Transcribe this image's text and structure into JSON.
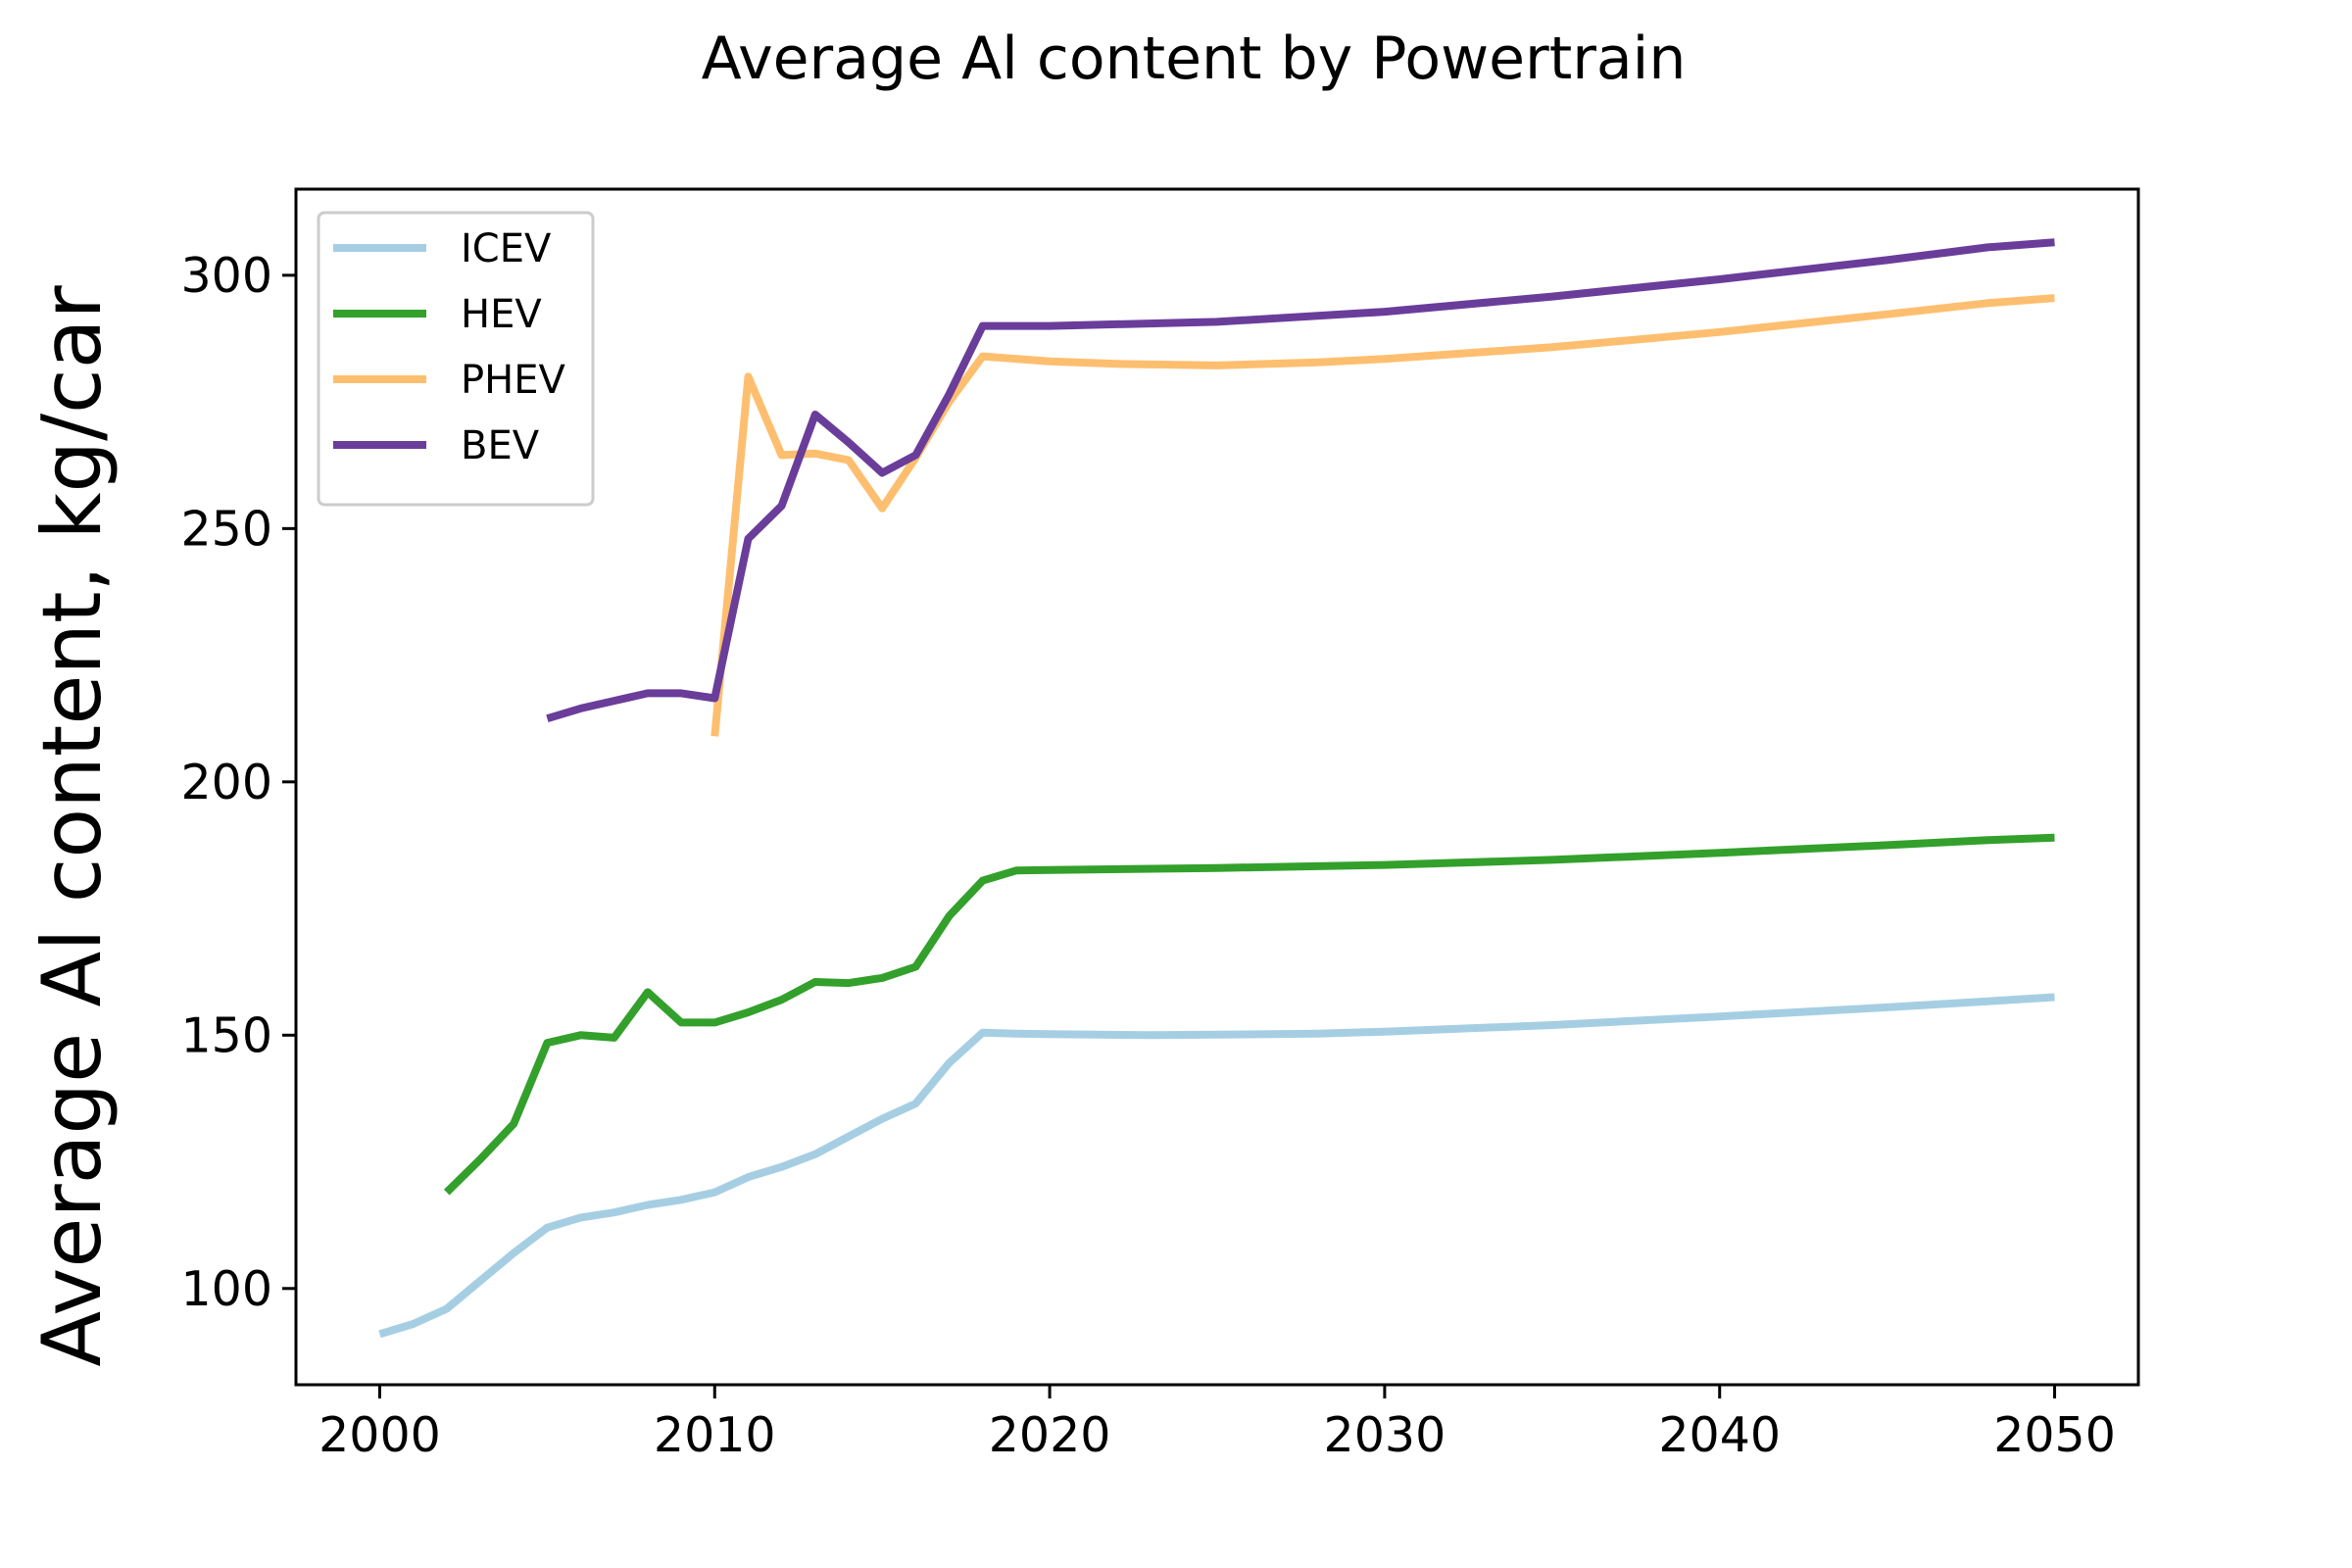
{
  "chart_data": {
    "type": "line",
    "title": "Average Al content by Powertrain",
    "xlabel": "",
    "ylabel": "Average Al content, kg/car",
    "xlim": [
      1997.5,
      2052.5
    ],
    "ylim": [
      81,
      317
    ],
    "xticks": [
      2000,
      2010,
      2020,
      2030,
      2040,
      2050
    ],
    "yticks": [
      100,
      150,
      200,
      250,
      300
    ],
    "grid": false,
    "legend_position": "top-left",
    "series": [
      {
        "name": "ICEV",
        "color": "#a6cee3",
        "x": [
          2000,
          2001,
          2002,
          2003,
          2004,
          2005,
          2006,
          2007,
          2008,
          2009,
          2010,
          2011,
          2012,
          2013,
          2014,
          2015,
          2016,
          2017,
          2018,
          2019,
          2020,
          2023,
          2025,
          2028,
          2030,
          2035,
          2040,
          2045,
          2048,
          2050
        ],
        "y": [
          91,
          93,
          96,
          101.5,
          107,
          112,
          114,
          115,
          116.5,
          117.5,
          119,
          122,
          124,
          126.5,
          130,
          133.5,
          136.5,
          144.5,
          150.5,
          150.3,
          150.2,
          150,
          150.1,
          150.3,
          150.7,
          152,
          153.7,
          155.5,
          156.7,
          157.5
        ]
      },
      {
        "name": "HEV",
        "color": "#33a02c",
        "x": [
          2002,
          2003,
          2004,
          2005,
          2006,
          2007,
          2008,
          2009,
          2010,
          2011,
          2012,
          2013,
          2014,
          2015,
          2016,
          2017,
          2018,
          2019,
          2020,
          2025,
          2030,
          2035,
          2040,
          2045,
          2048,
          2050
        ],
        "y": [
          119,
          125.5,
          132.5,
          148.5,
          150,
          149.5,
          158.5,
          152.5,
          152.5,
          154.5,
          157,
          160.5,
          160.3,
          161.3,
          163.5,
          173.5,
          180.5,
          182.5,
          182.6,
          183,
          183.6,
          184.6,
          186,
          187.5,
          188.5,
          189
        ]
      },
      {
        "name": "PHEV",
        "color": "#fdbf6f",
        "x": [
          2010,
          2011,
          2012,
          2013,
          2014,
          2015,
          2016,
          2017,
          2018,
          2020,
          2022,
          2025,
          2028,
          2030,
          2035,
          2040,
          2045,
          2048,
          2050
        ],
        "y": [
          209,
          280,
          264.5,
          264.8,
          263.5,
          254,
          264,
          275,
          284,
          283,
          282.5,
          282.2,
          282.8,
          283.5,
          285.8,
          288.8,
          292.3,
          294.5,
          295.5
        ]
      },
      {
        "name": "BEV",
        "color": "#6a3d9a",
        "x": [
          2005,
          2006,
          2007,
          2008,
          2009,
          2010,
          2011,
          2012,
          2013,
          2014,
          2015,
          2016,
          2017,
          2018,
          2020,
          2025,
          2030,
          2035,
          2040,
          2045,
          2048,
          2050
        ],
        "y": [
          212.5,
          214.5,
          216,
          217.5,
          217.5,
          216.5,
          248,
          254.5,
          272.5,
          267,
          261,
          264.5,
          276.5,
          290,
          290,
          290.8,
          292.8,
          295.8,
          299.2,
          303,
          305.5,
          306.5
        ]
      }
    ]
  }
}
